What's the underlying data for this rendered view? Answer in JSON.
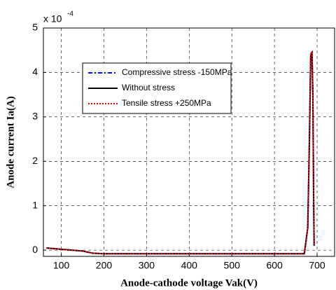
{
  "chart_data": {
    "type": "line",
    "xlabel": "Anode-cathode voltage Vak(V)",
    "ylabel": "Anode current Ia(A)",
    "y_multiplier": {
      "base": "x 10",
      "exponent": "-4"
    },
    "x": [
      65,
      100,
      150,
      175,
      200,
      400,
      600,
      670,
      678,
      682,
      685,
      688,
      690,
      692,
      693
    ],
    "series": [
      {
        "name": "Compressive stress -150MPa",
        "color": "#0000ff",
        "dash": "dashdot",
        "values": [
          0.05,
          0.02,
          -0.02,
          -0.07,
          -0.08,
          -0.08,
          -0.08,
          -0.08,
          0.5,
          2.5,
          4.38,
          4.42,
          3.5,
          1.0,
          0.1
        ]
      },
      {
        "name": "Without stress",
        "color": "#000000",
        "dash": "solid",
        "values": [
          0.05,
          0.02,
          -0.02,
          -0.07,
          -0.08,
          -0.08,
          -0.08,
          -0.08,
          0.5,
          2.5,
          4.4,
          4.45,
          3.5,
          1.0,
          0.1
        ]
      },
      {
        "name": "Tensile stress +250MPa",
        "color": "#ff0000",
        "dash": "dotted",
        "values": [
          0.05,
          0.02,
          -0.02,
          -0.07,
          -0.08,
          -0.08,
          -0.08,
          -0.08,
          0.5,
          2.5,
          4.42,
          4.47,
          3.5,
          1.0,
          0.1
        ]
      }
    ],
    "xlim": [
      58,
      741
    ],
    "xticks": [
      100,
      200,
      300,
      400,
      500,
      600,
      700
    ],
    "ylim": [
      -0.14,
      5
    ],
    "yticks": [
      0,
      1,
      2,
      3,
      4,
      5
    ],
    "grid": true,
    "legend_position": "upper left"
  }
}
